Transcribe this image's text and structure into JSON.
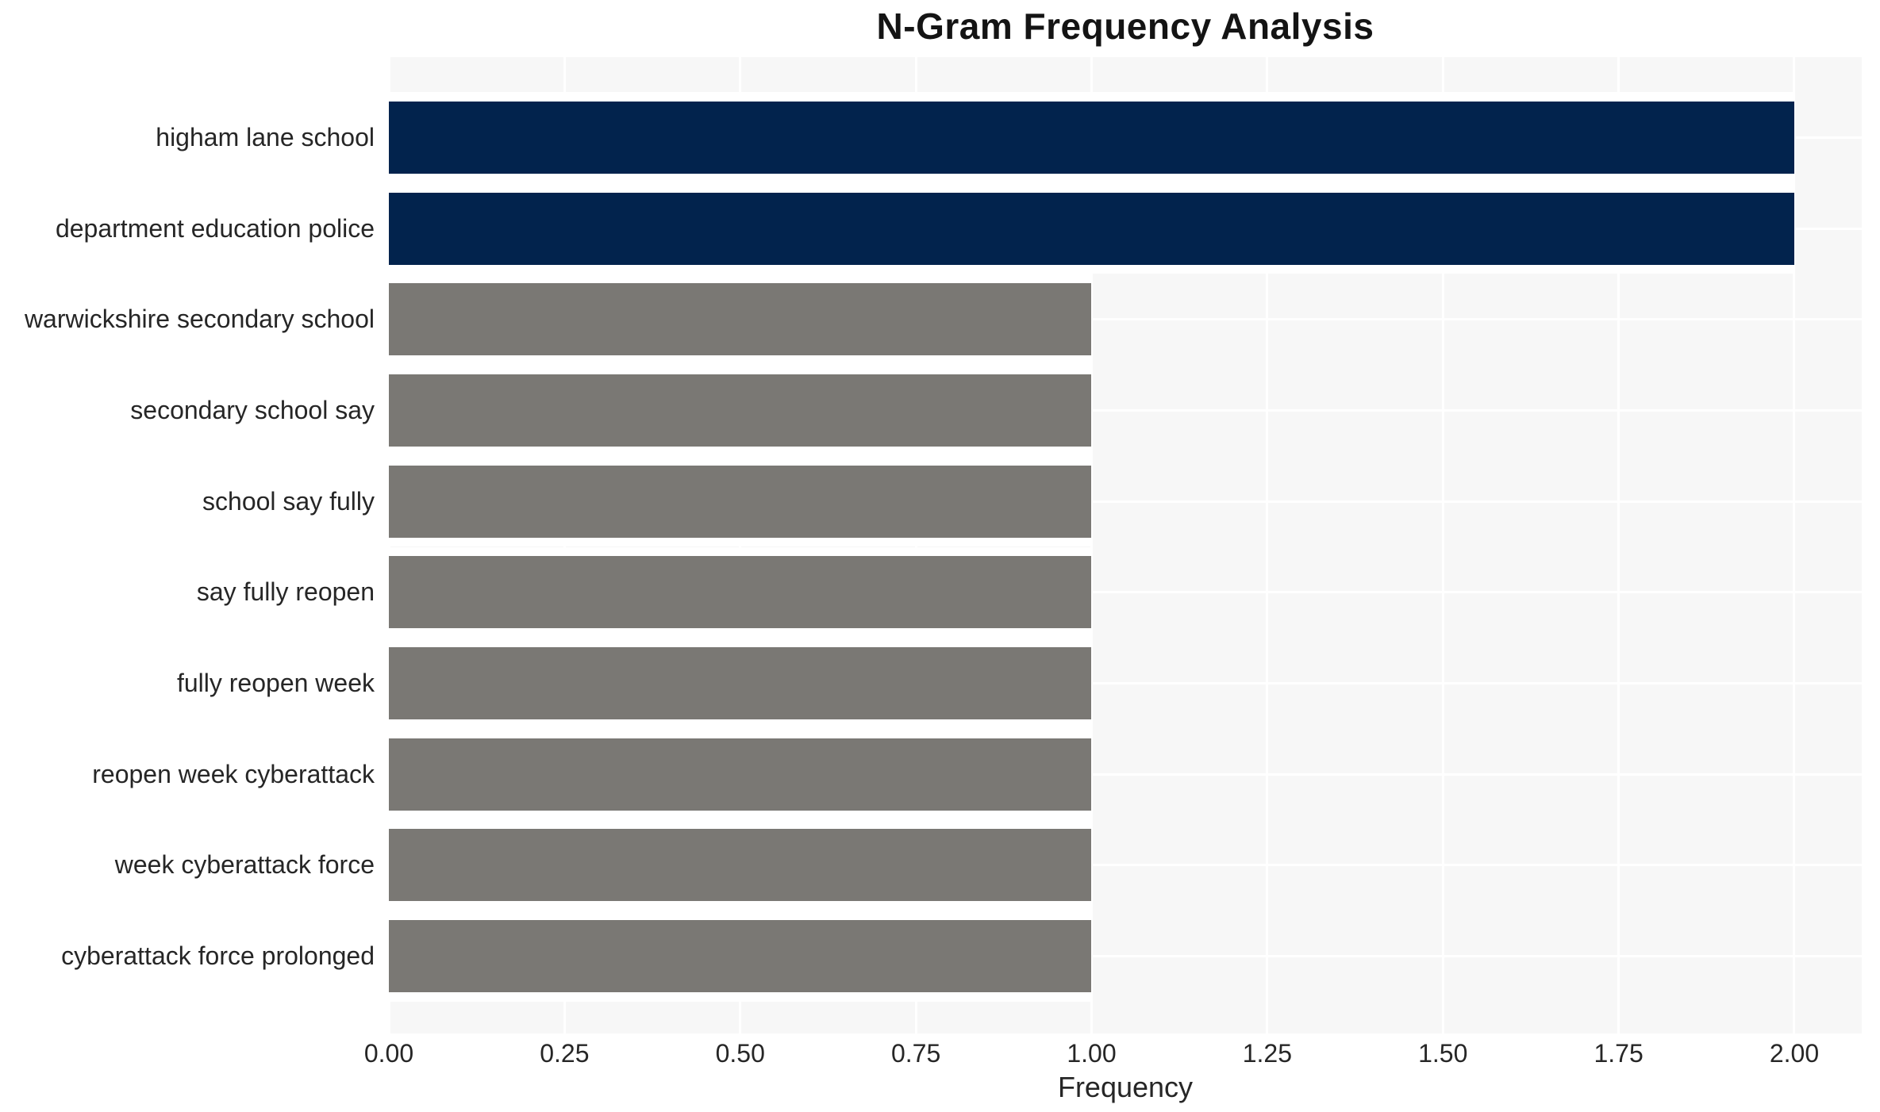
{
  "page": {
    "background": "#ffffff"
  },
  "chart_data": {
    "type": "bar",
    "orientation": "horizontal",
    "title": "N-Gram Frequency Analysis",
    "xlabel": "Frequency",
    "ylabel": "",
    "categories": [
      "higham lane school",
      "department education police",
      "warwickshire secondary school",
      "secondary school say",
      "school say fully",
      "say fully reopen",
      "fully reopen week",
      "reopen week cyberattack",
      "week cyberattack force",
      "cyberattack force prolonged"
    ],
    "values": [
      2,
      2,
      1,
      1,
      1,
      1,
      1,
      1,
      1,
      1
    ],
    "bar_colors": [
      "#02234d",
      "#02234d",
      "#7a7874",
      "#7a7874",
      "#7a7874",
      "#7a7874",
      "#7a7874",
      "#7a7874",
      "#7a7874",
      "#7a7874"
    ],
    "highlight_color": "#02234d",
    "default_color": "#7a7874",
    "x_ticks": [
      0,
      0.25,
      0.5,
      0.75,
      1.0,
      1.25,
      1.5,
      1.75,
      2.0
    ],
    "x_tick_labels": [
      "0.00",
      "0.25",
      "0.50",
      "0.75",
      "1.00",
      "1.25",
      "1.50",
      "1.75",
      "2.00"
    ],
    "xlim": [
      0,
      2.096
    ],
    "grid": true,
    "legend": false,
    "plot_bg": "#f7f7f7",
    "grid_color": "#ffffff",
    "text_color": "#262626"
  }
}
